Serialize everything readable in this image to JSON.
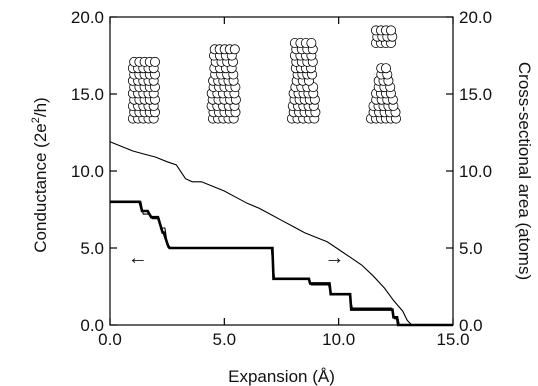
{
  "chart_data": {
    "type": "line",
    "title": "",
    "xlabel": "Expansion (Å)",
    "ylabel_left_prefix": "Conductance (2e",
    "ylabel_left_sup": "2",
    "ylabel_left_suffix": "/h)",
    "ylabel_right": "Cross-sectional area (atoms)",
    "xlim": [
      0,
      15
    ],
    "ylim_left": [
      0,
      20
    ],
    "ylim_right": [
      0,
      20
    ],
    "x_ticks": [
      "0.0",
      "5.0",
      "10.0",
      "15.0"
    ],
    "x_tick_values": [
      0,
      5,
      10,
      15
    ],
    "y_ticks_left": [
      "0.0",
      "5.0",
      "10.0",
      "15.0",
      "20.0"
    ],
    "y_ticks_right": [
      "0.0",
      "5.0",
      "10.0",
      "15.0",
      "20.0"
    ],
    "y_tick_values": [
      0,
      5,
      10,
      15,
      20
    ],
    "grid": false,
    "annotations": [
      {
        "symbol": "←",
        "meaning": "conductance curves refer to left axis",
        "x": 0.6,
        "y": 4.4
      },
      {
        "symbol": "→",
        "meaning": "area curve refers to right axis",
        "x": 9.2,
        "y": 4.4
      }
    ],
    "insets": [
      {
        "description": "atomic wire snapshot",
        "x_center": 1.45,
        "y_bottom": 13.4,
        "y_top": 16.9
      },
      {
        "description": "atomic wire snapshot",
        "x_center": 4.95,
        "y_bottom": 13.4,
        "y_top": 17.9
      },
      {
        "description": "atomic wire snapshot",
        "x_center": 8.45,
        "y_bottom": 13.4,
        "y_top": 18.3
      },
      {
        "description": "atomic wire snapshot (broken)",
        "x_center": 11.95,
        "y_bottom": 13.4,
        "y_top": 19.0
      }
    ],
    "series": [
      {
        "axis": "right",
        "style": "thin",
        "x": [
          0,
          0.5,
          1.0,
          1.5,
          2.0,
          2.5,
          2.9,
          3.3,
          3.6,
          4.0,
          4.5,
          5.0,
          5.5,
          6.0,
          6.5,
          7.0,
          7.5,
          8.0,
          8.5,
          9.0,
          9.5,
          10.0,
          10.5,
          11.0,
          11.5,
          12.0,
          12.4,
          12.8,
          13.0,
          13.2
        ],
        "y": [
          11.9,
          11.6,
          11.3,
          11.1,
          10.9,
          10.6,
          10.4,
          9.5,
          9.3,
          9.3,
          9.0,
          8.7,
          8.3,
          7.9,
          7.6,
          7.2,
          6.8,
          6.4,
          6.0,
          5.7,
          5.4,
          4.9,
          4.4,
          3.9,
          3.2,
          2.4,
          1.6,
          0.9,
          0.3,
          0.0
        ]
      },
      {
        "axis": "left",
        "style": "thick",
        "x": [
          0,
          1.3,
          1.4,
          1.65,
          1.8,
          2.1,
          2.3,
          2.35,
          2.55,
          2.6,
          7.1,
          7.15,
          8.7,
          8.75,
          9.6,
          9.65,
          10.5,
          10.55,
          12.35,
          12.4,
          12.55,
          12.6,
          15.0
        ],
        "y": [
          8.0,
          8.0,
          7.4,
          7.4,
          7.0,
          7.0,
          6.0,
          6.0,
          5.1,
          5.0,
          5.0,
          3.0,
          3.0,
          2.7,
          2.7,
          2.0,
          2.0,
          1.0,
          1.0,
          0.5,
          0.5,
          0.0,
          0.0
        ]
      },
      {
        "axis": "left",
        "style": "thin",
        "x": [
          0,
          1.35,
          1.45,
          1.7,
          1.85,
          2.15,
          2.25,
          2.4,
          2.5,
          2.65,
          7.05,
          7.2,
          8.65,
          8.8,
          9.55,
          9.7,
          10.45,
          10.6,
          12.3,
          12.45,
          12.6,
          12.65,
          15.0
        ],
        "y": [
          8.0,
          8.0,
          7.2,
          7.2,
          6.9,
          6.9,
          6.3,
          6.3,
          5.3,
          5.0,
          5.0,
          3.0,
          3.0,
          2.6,
          2.6,
          2.0,
          2.0,
          1.1,
          1.1,
          0.4,
          0.4,
          0.0,
          0.0
        ]
      }
    ]
  }
}
